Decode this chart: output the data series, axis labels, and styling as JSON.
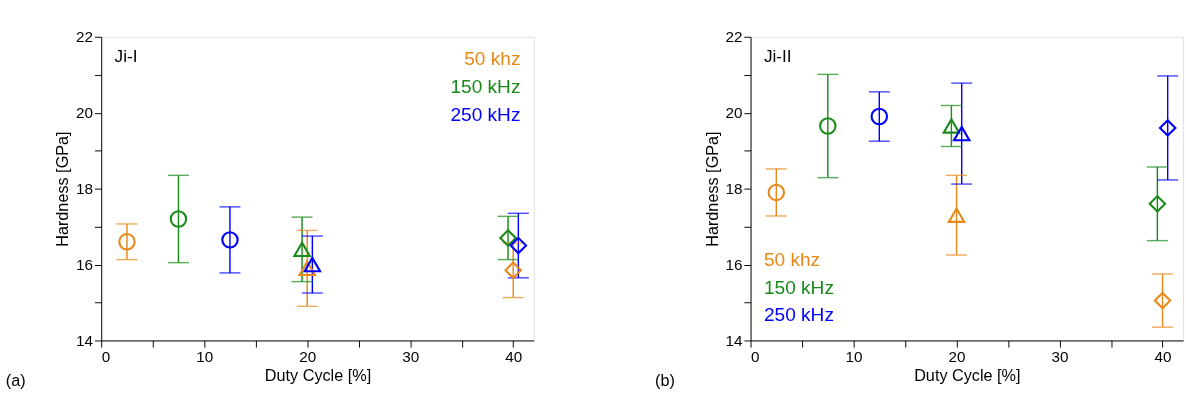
{
  "chart_data": [
    {
      "type": "scatter",
      "title": "Ji-I",
      "xlabel": "Duty Cycle [%]",
      "ylabel": "Hardness [GPa]",
      "annotations": [
        "(a)"
      ],
      "legend": "top right",
      "xlim": [
        0,
        42
      ],
      "ylim": [
        14,
        22
      ],
      "xticks": [
        0,
        {
          "value": 5,
          "label": null
        },
        10,
        {
          "value": 15,
          "label": null
        },
        20,
        {
          "value": 25,
          "label": null
        },
        30,
        {
          "value": 35,
          "label": null
        },
        40
      ],
      "yticks": [
        14,
        {
          "value": 15,
          "label": null
        },
        16,
        {
          "value": 17,
          "label": null
        },
        18,
        {
          "value": 19,
          "label": null
        },
        20,
        {
          "value": 21,
          "label": null
        },
        22
      ],
      "series": [
        {
          "name": "50 khz",
          "color": "#e6891a",
          "marker": "circle",
          "x": [
            2.5
          ],
          "values": [
            16.6
          ],
          "errors": [
            0.47
          ]
        },
        {
          "name": "150 kHz",
          "color": "#1a8a1a",
          "marker": "circle",
          "x": [
            7.5
          ],
          "values": [
            17.2
          ],
          "errors": [
            1.15
          ]
        },
        {
          "name": "250 kHz",
          "color": "#0000ff",
          "marker": "circle",
          "x": [
            12.5
          ],
          "values": [
            16.65
          ],
          "errors": [
            0.87
          ]
        },
        {
          "color": "#1a8a1a",
          "marker": "triangle",
          "x": [
            19.5
          ],
          "values": [
            16.4
          ],
          "errors": [
            0.85
          ]
        },
        {
          "color": "#e6891a",
          "marker": "triangle",
          "x": [
            20
          ],
          "values": [
            15.9
          ],
          "errors": [
            1.0
          ]
        },
        {
          "color": "#0000ff",
          "marker": "triangle",
          "x": [
            20.5
          ],
          "values": [
            16.0
          ],
          "errors": [
            0.75
          ]
        },
        {
          "color": "#1a8a1a",
          "marker": "diamond",
          "x": [
            39.5
          ],
          "values": [
            16.7
          ],
          "errors": [
            0.57
          ]
        },
        {
          "color": "#e6891a",
          "marker": "diamond",
          "x": [
            40
          ],
          "values": [
            15.85
          ],
          "errors": [
            0.72
          ]
        },
        {
          "color": "#0000ff",
          "marker": "diamond",
          "x": [
            40.5
          ],
          "values": [
            16.5
          ],
          "errors": [
            0.85
          ]
        }
      ]
    },
    {
      "type": "scatter",
      "title": "Ji-II",
      "xlabel": "Duty Cycle [%]",
      "ylabel": "Hardness [GPa]",
      "annotations": [
        "(b)"
      ],
      "legend": "bottom left",
      "xlim": [
        0,
        42
      ],
      "ylim": [
        14,
        22
      ],
      "xticks": [
        0,
        {
          "value": 5,
          "label": null
        },
        10,
        {
          "value": 15,
          "label": null
        },
        20,
        {
          "value": 25,
          "label": null
        },
        30,
        {
          "value": 35,
          "label": null
        },
        40
      ],
      "yticks": [
        14,
        {
          "value": 15,
          "label": null
        },
        16,
        {
          "value": 17,
          "label": null
        },
        18,
        {
          "value": 19,
          "label": null
        },
        20,
        {
          "value": 21,
          "label": null
        },
        22
      ],
      "series": [
        {
          "name": "50 khz",
          "color": "#e6891a",
          "marker": "circle",
          "x": [
            2.5
          ],
          "values": [
            17.9
          ],
          "errors": [
            0.62
          ]
        },
        {
          "name": "150 kHz",
          "color": "#1a8a1a",
          "marker": "circle",
          "x": [
            7.5
          ],
          "values": [
            19.65
          ],
          "errors": [
            1.36
          ]
        },
        {
          "name": "250 kHz",
          "color": "#0000ff",
          "marker": "circle",
          "x": [
            12.5
          ],
          "values": [
            19.9
          ],
          "errors": [
            0.65
          ]
        },
        {
          "color": "#1a8a1a",
          "marker": "triangle",
          "x": [
            19.5
          ],
          "values": [
            19.65
          ],
          "errors": [
            0.54
          ]
        },
        {
          "color": "#e6891a",
          "marker": "triangle",
          "x": [
            20
          ],
          "values": [
            17.3
          ],
          "errors": [
            1.05
          ]
        },
        {
          "color": "#0000ff",
          "marker": "triangle",
          "x": [
            20.5
          ],
          "values": [
            19.45
          ],
          "errors": [
            1.33
          ]
        },
        {
          "color": "#1a8a1a",
          "marker": "diamond",
          "x": [
            39.5
          ],
          "values": [
            17.6
          ],
          "errors": [
            0.97
          ]
        },
        {
          "color": "#e6891a",
          "marker": "diamond",
          "x": [
            40
          ],
          "values": [
            15.05
          ],
          "errors": [
            0.7
          ]
        },
        {
          "color": "#0000ff",
          "marker": "diamond",
          "x": [
            40.5
          ],
          "values": [
            19.6
          ],
          "errors": [
            1.37
          ]
        }
      ]
    }
  ]
}
